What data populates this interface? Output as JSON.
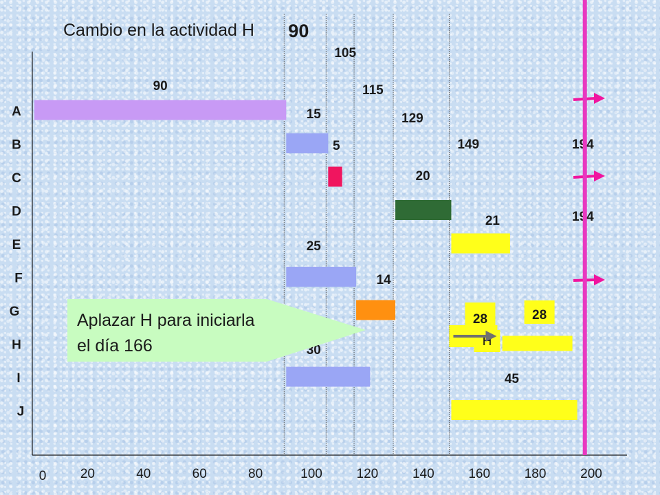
{
  "chart_data": {
    "type": "bar",
    "subtype": "gantt",
    "title": "Cambio en la actividad H",
    "xlim": [
      0,
      200
    ],
    "x_ticks": [
      "0",
      "20",
      "40",
      "60",
      "80",
      "100",
      "120",
      "140",
      "160",
      "180",
      "200"
    ],
    "tick_values": [
      0,
      20,
      40,
      60,
      80,
      100,
      120,
      140,
      160,
      180,
      200
    ],
    "grid": false,
    "categories": [
      "A",
      "B",
      "C",
      "D",
      "E",
      "F",
      "G",
      "H",
      "I",
      "J"
    ],
    "tasks": [
      {
        "name": "A",
        "start": 0,
        "end": 90,
        "label": "90",
        "color": "#c89af5"
      },
      {
        "name": "B",
        "start": 90,
        "end": 105,
        "label": "15",
        "color": "#9aa6f5"
      },
      {
        "name": "C",
        "start": 105,
        "end": 110,
        "label": "5",
        "color": "#f0155f"
      },
      {
        "name": "D",
        "start": 129,
        "end": 149,
        "label": "20",
        "color": "#2f6b35"
      },
      {
        "name": "E",
        "start": 149,
        "end": 170,
        "label": "21",
        "color": "#ffff1a"
      },
      {
        "name": "F",
        "start": 90,
        "end": 115,
        "label": "25",
        "color": "#9aa6f5"
      },
      {
        "name": "G",
        "start": 115,
        "end": 129,
        "label": "14",
        "color": "#ff9010"
      },
      {
        "name": "H",
        "start": 166,
        "end": 194,
        "label": "28",
        "color": "#ffff1a"
      },
      {
        "name": "I",
        "start": 90,
        "end": 120,
        "label": "30",
        "color": "#9aa6f5"
      },
      {
        "name": "J",
        "start": 149,
        "end": 194,
        "label": "45",
        "color": "#ffff1a"
      }
    ],
    "original_h": {
      "start": 149,
      "end": 177,
      "label": "28",
      "letter": "H",
      "color": "#ffff1a"
    },
    "milestones": [
      {
        "value": 90,
        "label": "90"
      },
      {
        "value": 105,
        "label": "105"
      },
      {
        "value": 115,
        "label": "115"
      },
      {
        "value": 129,
        "label": "129"
      },
      {
        "value": 149,
        "label": "149"
      },
      {
        "value": 194,
        "label": "194"
      }
    ],
    "end_marker": {
      "value": 196,
      "color": "#e838c0"
    },
    "annotations": {
      "end_label_top": "194",
      "end_label_mid": "194",
      "callout_line1": "Aplazar H  para iniciarla",
      "callout_line2": "el día 166",
      "arrow_color": "#f0159f"
    }
  }
}
